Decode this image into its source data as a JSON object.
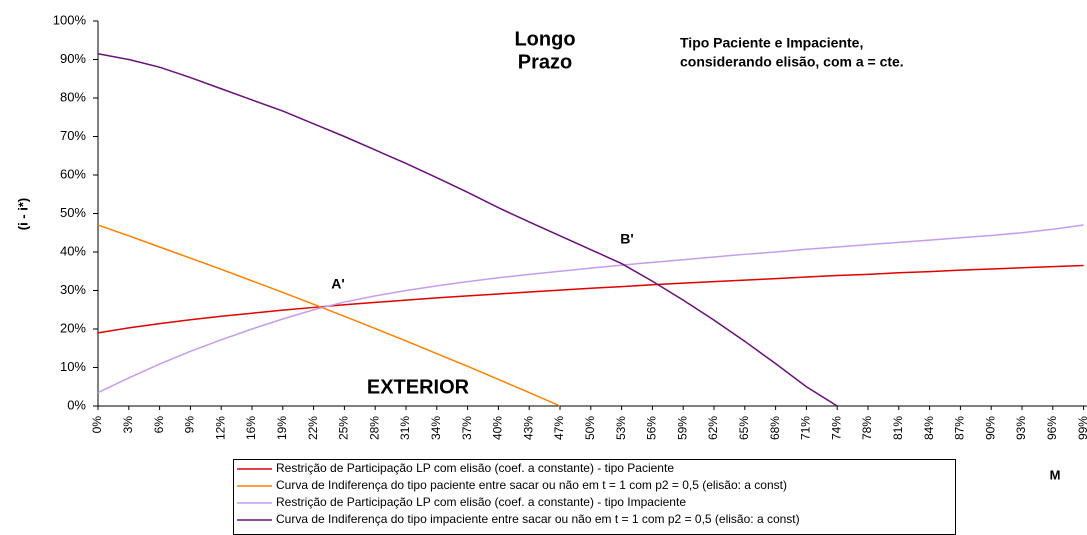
{
  "chart_data": {
    "type": "line",
    "y_label": "(i - i*)",
    "x_label": "M",
    "categories": [
      "0%",
      "3%",
      "6%",
      "9%",
      "12%",
      "16%",
      "19%",
      "22%",
      "25%",
      "28%",
      "31%",
      "34%",
      "37%",
      "40%",
      "43%",
      "47%",
      "50%",
      "53%",
      "56%",
      "59%",
      "62%",
      "65%",
      "68%",
      "71%",
      "74%",
      "78%",
      "81%",
      "84%",
      "87%",
      "90%",
      "93%",
      "96%",
      "99%"
    ],
    "ylim": [
      0,
      100
    ],
    "yticks": [
      {
        "value": 0,
        "label": "0%"
      },
      {
        "value": 10,
        "label": "10%"
      },
      {
        "value": 20,
        "label": "20%"
      },
      {
        "value": 30,
        "label": "30%"
      },
      {
        "value": 40,
        "label": "40%"
      },
      {
        "value": 50,
        "label": "50%"
      },
      {
        "value": 60,
        "label": "60%"
      },
      {
        "value": 70,
        "label": "70%"
      },
      {
        "value": 80,
        "label": "80%"
      },
      {
        "value": 90,
        "label": "90%"
      },
      {
        "value": 100,
        "label": "100%"
      }
    ],
    "grid": false,
    "legend": "bottom",
    "series": [
      {
        "name": "Restrição de Participação LP com elisão (coef. a constante) - tipo Paciente",
        "color": "#e00000",
        "values": [
          19,
          20.3,
          21.4,
          22.4,
          23.3,
          24.1,
          24.9,
          25.6,
          26.3,
          26.9,
          27.5,
          28.1,
          28.6,
          29.1,
          29.6,
          30.1,
          30.6,
          31.0,
          31.5,
          31.9,
          32.3,
          32.7,
          33.1,
          33.5,
          33.9,
          34.2,
          34.6,
          34.9,
          35.3,
          35.6,
          35.9,
          36.2,
          36.5
        ]
      },
      {
        "name": "Curva de Indiferença do tipo paciente entre sacar ou não em t = 1 com p2 = 0,5 (elisão: a const)",
        "color": "#ff8000",
        "values": [
          47,
          44.2,
          41.3,
          38.4,
          35.5,
          32.5,
          29.5,
          26.4,
          23.3,
          20.1,
          16.9,
          13.6,
          10.3,
          6.9,
          3.5,
          0,
          null,
          null,
          null,
          null,
          null,
          null,
          null,
          null,
          null,
          null,
          null,
          null,
          null,
          null,
          null,
          null,
          null
        ]
      },
      {
        "name": "Restrição de Participação LP com elisão (coef. a constante) - tipo Impaciente",
        "color": "#c59cf0",
        "values": [
          3.5,
          7.3,
          10.9,
          14.2,
          17.2,
          20.0,
          22.6,
          25.0,
          27.0,
          28.6,
          30.0,
          31.2,
          32.3,
          33.3,
          34.2,
          35.0,
          35.8,
          36.6,
          37.3,
          38.0,
          38.7,
          39.4,
          40.0,
          40.7,
          41.3,
          41.9,
          42.5,
          43.1,
          43.7,
          44.3,
          45.0,
          45.9,
          47.0
        ]
      },
      {
        "name": "Curva de Indiferença do tipo impaciente entre sacar ou não em t = 1 com p2 = 0,5 (elisão: a const)",
        "color": "#6a0f7a",
        "values": [
          91.5,
          90.0,
          88.0,
          85.3,
          82.4,
          79.5,
          76.6,
          73.3,
          70,
          66.5,
          63,
          59.3,
          55.5,
          51.5,
          47.8,
          44.2,
          40.6,
          37,
          32.4,
          27.5,
          22.3,
          16.8,
          11.0,
          5.0,
          0,
          null,
          null,
          null,
          null,
          null,
          null,
          null,
          null
        ]
      }
    ],
    "annotations": [
      {
        "lines": [
          "Longo",
          "Prazo"
        ],
        "color": "#000000"
      },
      {
        "lines": [
          "Tipo Paciente e Impaciente,",
          "considerando elisão, com a = cte."
        ],
        "color": "#000000"
      },
      {
        "lines": [
          "EXTERIOR"
        ],
        "color": "#000000"
      },
      {
        "lines": [
          "A'"
        ],
        "color": "#e00000"
      },
      {
        "lines": [
          "B'"
        ],
        "color": "#6a0f7a"
      }
    ]
  }
}
